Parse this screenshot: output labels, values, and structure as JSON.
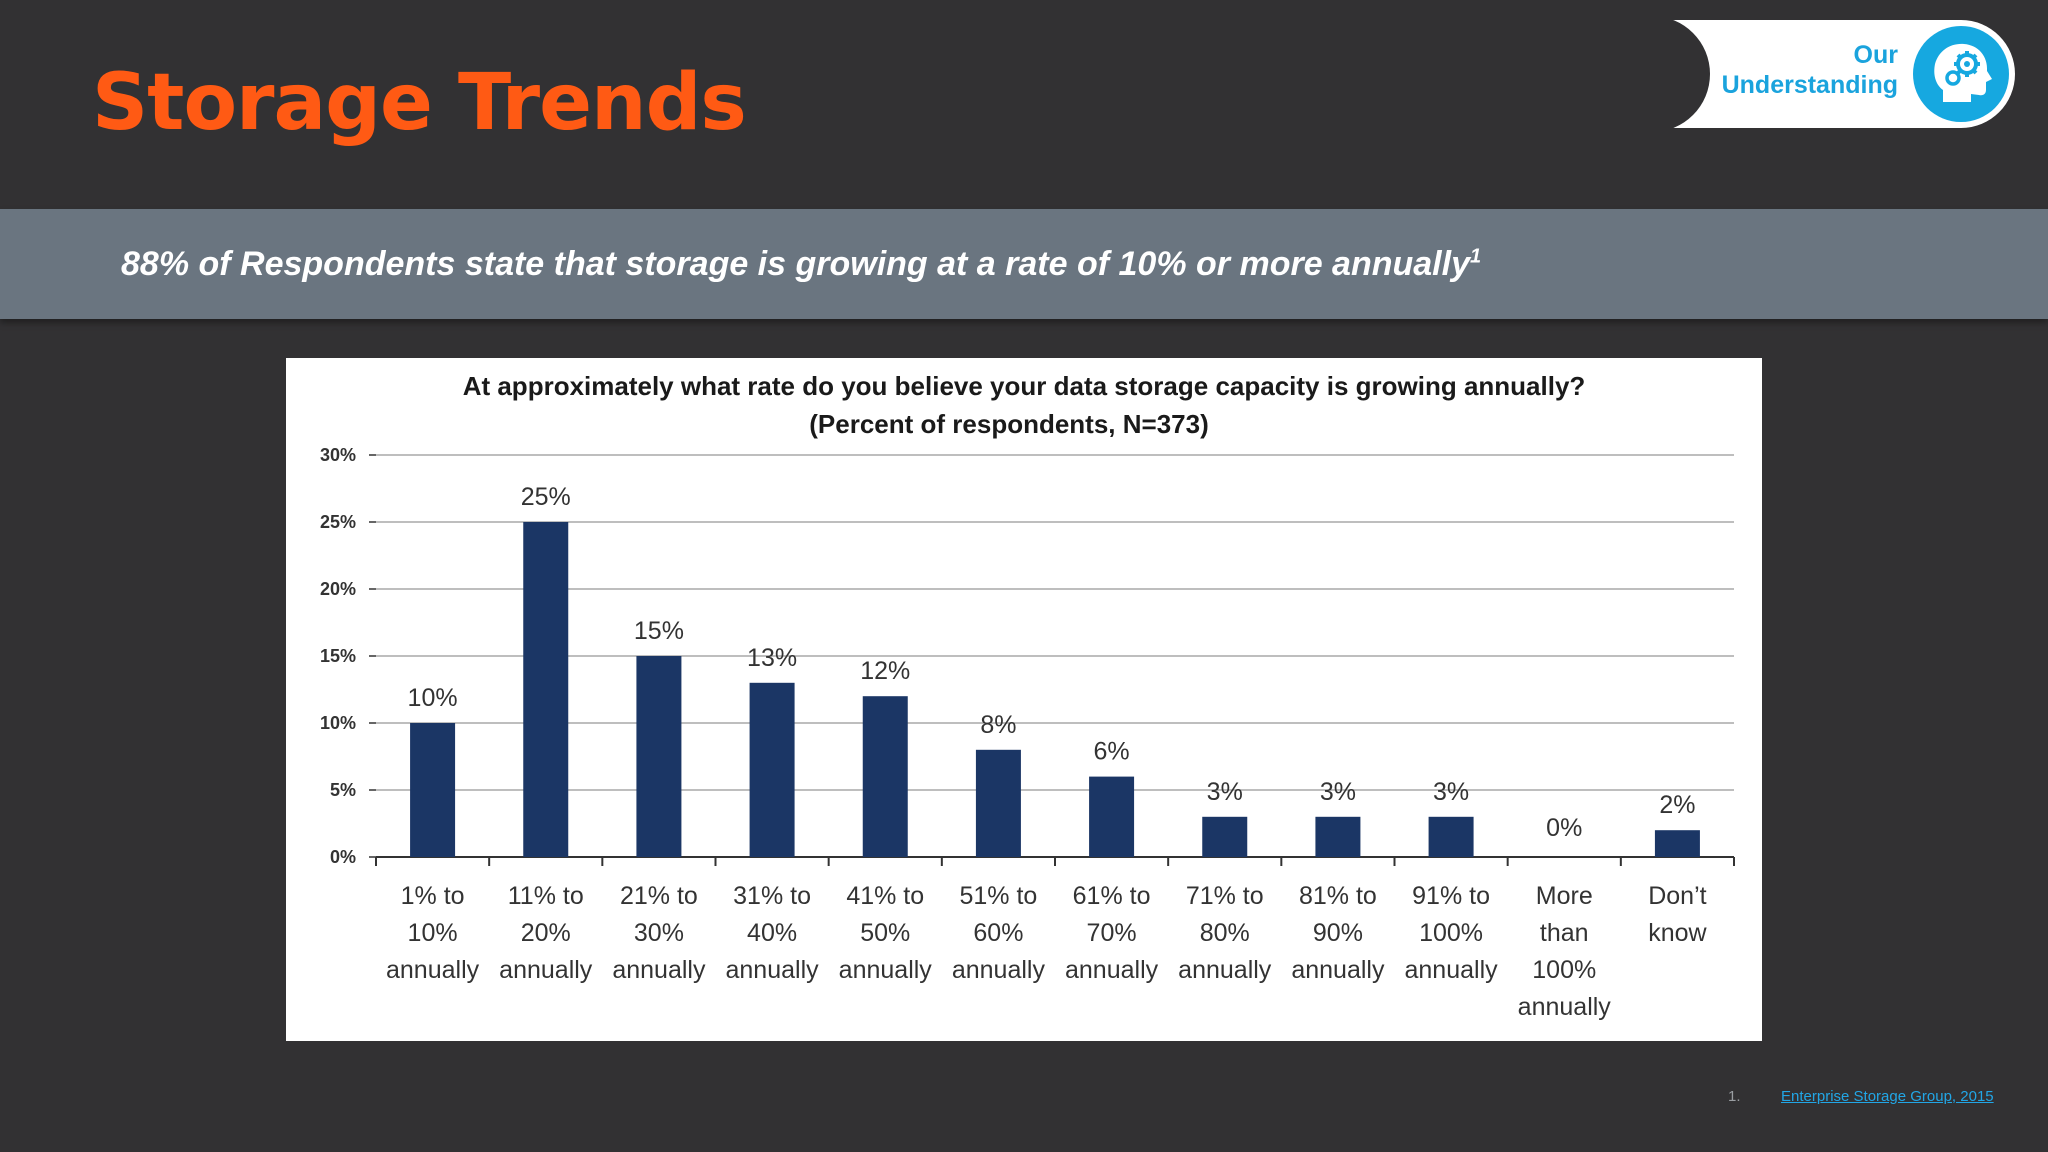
{
  "slide": {
    "title": "Storage Trends",
    "banner": {
      "text": "88% of Respondents state that storage is growing at a rate of 10% or more annually",
      "superscript": "1"
    },
    "badge": {
      "line1": "Our",
      "line2": "Understanding",
      "icon": "head-gears-icon"
    },
    "footnote": {
      "number": "1.",
      "link_text": "Enterprise Storage Group, 2015"
    },
    "colors": {
      "background": "#323133",
      "title": "#ff5a14",
      "banner": "#6a7580",
      "accent": "#1aa3dd",
      "bar": "#1b3665"
    }
  },
  "chart_data": {
    "type": "bar",
    "title": "At approximately what rate do you believe your data storage capacity is growing annually?",
    "subtitle": "(Percent of respondents, N=373)",
    "xlabel": "",
    "ylabel": "",
    "ylim": [
      0,
      30
    ],
    "yticks": [
      "0%",
      "5%",
      "10%",
      "15%",
      "20%",
      "25%",
      "30%"
    ],
    "grid": true,
    "categories": [
      [
        "1% to",
        "10%",
        "annually"
      ],
      [
        "11% to",
        "20%",
        "annually"
      ],
      [
        "21% to",
        "30%",
        "annually"
      ],
      [
        "31% to",
        "40%",
        "annually"
      ],
      [
        "41% to",
        "50%",
        "annually"
      ],
      [
        "51% to",
        "60%",
        "annually"
      ],
      [
        "61% to",
        "70%",
        "annually"
      ],
      [
        "71% to",
        "80%",
        "annually"
      ],
      [
        "81% to",
        "90%",
        "annually"
      ],
      [
        "91% to",
        "100%",
        "annually"
      ],
      [
        "More",
        "than",
        "100%",
        "annually"
      ],
      [
        "Don’t",
        "know"
      ]
    ],
    "values": [
      10,
      25,
      15,
      13,
      12,
      8,
      6,
      3,
      3,
      3,
      0,
      2
    ],
    "data_labels": [
      "10%",
      "25%",
      "15%",
      "13%",
      "12%",
      "8%",
      "6%",
      "3%",
      "3%",
      "3%",
      "0%",
      "2%"
    ]
  }
}
